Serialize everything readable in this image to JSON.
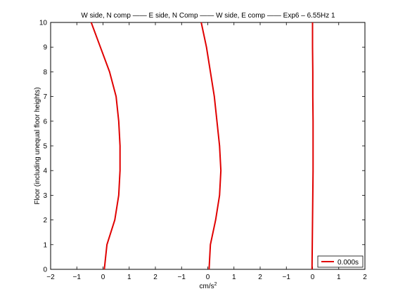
{
  "chart_data": {
    "type": "line",
    "title": "W side, N comp —— E side, N Comp —— W side, E comp —— Exp6 – 6.55Hz 1",
    "xlabel": "cm/s",
    "xlabel_sup": "2",
    "ylabel": "Floor (including unequal floor heights)",
    "xlim": [
      -2,
      10
    ],
    "ylim": [
      0,
      10
    ],
    "grid": false,
    "legend": {
      "placement": "bottom-right",
      "entries": [
        "0.000s"
      ]
    },
    "line_color": "#e00000",
    "x_tick_labels": [
      "−2",
      "−1",
      "0",
      "1",
      "2",
      "−1",
      "0",
      "1",
      "2",
      "−1",
      "0",
      "1",
      "2"
    ],
    "y_ticks": [
      0,
      1,
      2,
      3,
      4,
      5,
      6,
      7,
      8,
      9,
      10
    ],
    "series": [
      {
        "name": "0.000s",
        "x": [
          0.05,
          0.15,
          0.45,
          0.6,
          0.65,
          0.65,
          0.6,
          0.5,
          0.25,
          -0.1,
          -0.45
        ],
        "y": [
          0,
          1,
          2,
          3,
          4,
          5,
          6,
          7,
          8,
          9,
          10
        ]
      },
      {
        "x": [
          4.05,
          4.1,
          4.3,
          4.45,
          4.5,
          4.45,
          4.35,
          4.25,
          4.1,
          3.95,
          3.75
        ],
        "y": [
          0,
          1,
          2,
          3,
          4,
          5,
          6,
          7,
          8,
          9,
          10
        ]
      },
      {
        "x": [
          7.98,
          7.99,
          8.0,
          8.01,
          8.02,
          8.02,
          8.02,
          8.01,
          8.01,
          8.0,
          8.0
        ],
        "y": [
          0,
          1,
          2,
          3,
          4,
          5,
          6,
          7,
          8,
          9,
          10
        ]
      }
    ]
  }
}
